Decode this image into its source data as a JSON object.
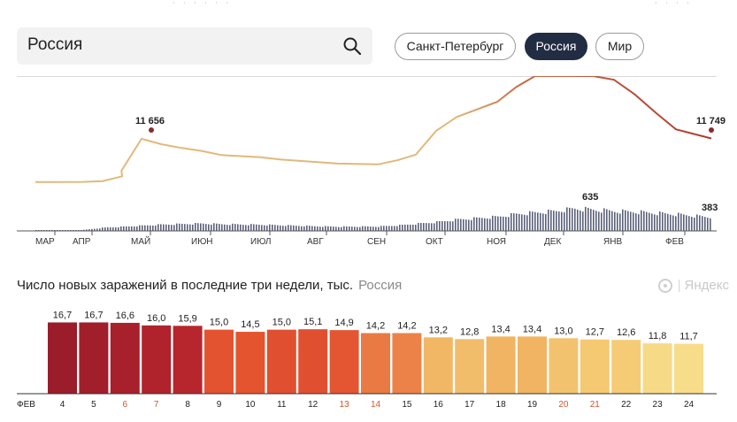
{
  "search": {
    "value": "Россия"
  },
  "region_pills": [
    {
      "label": "Санкт-Петербург",
      "active": false
    },
    {
      "label": "Россия",
      "active": true
    },
    {
      "label": "Мир",
      "active": false
    }
  ],
  "colors": {
    "cumulative_line_low": "#e0b97a",
    "cumulative_line_high": "#b03a2e",
    "daily_bars": "#5b6078",
    "marker": "#8a2a2a",
    "active_pill": "#222d44",
    "weekend_label": "#d2542c"
  },
  "chart_data": [
    {
      "type": "line",
      "description_ref": "cumulative infection curve with daily bars",
      "x_tick_labels": [
        "МАР",
        "АПР",
        "МАЙ",
        "ИЮН",
        "ИЮЛ",
        "АВГ",
        "СЕН",
        "ОКТ",
        "НОЯ",
        "ДЕК",
        "ЯНВ",
        "ФЕВ"
      ],
      "annotations": [
        {
          "label": "11 656",
          "x": "МАЙ"
        },
        {
          "label": "11 749",
          "x": "ФЕВ"
        },
        {
          "label": "635",
          "x": "ДЕК"
        },
        {
          "label": "383",
          "x": "ФЕВ"
        }
      ],
      "line_values": [
        {
          "x": "МАР",
          "y": 60
        },
        {
          "x": "МАР+",
          "y": 60
        },
        {
          "x": "АПР",
          "y": 100
        },
        {
          "x": "АПР+",
          "y": 300
        },
        {
          "x": "АПР++",
          "y": 1600
        },
        {
          "x": "МАЙ-",
          "y": 3100
        },
        {
          "x": "МАЙ",
          "y": 11656
        },
        {
          "x": "МАЙ+",
          "y": 10200
        },
        {
          "x": "ИЮН-",
          "y": 9200
        },
        {
          "x": "ИЮН",
          "y": 8400
        },
        {
          "x": "ИЮН+",
          "y": 7300
        },
        {
          "x": "ИЮЛ",
          "y": 6700
        },
        {
          "x": "ИЮЛ+",
          "y": 6100
        },
        {
          "x": "АВГ",
          "y": 5400
        },
        {
          "x": "АВГ+",
          "y": 5000
        },
        {
          "x": "СЕН",
          "y": 4800
        },
        {
          "x": "СЕН+",
          "y": 5900
        },
        {
          "x": "ОКТ-",
          "y": 7400
        },
        {
          "x": "ОКТ",
          "y": 13800
        },
        {
          "x": "ОКТ+",
          "y": 17500
        },
        {
          "x": "НОЯ",
          "y": 21600
        },
        {
          "x": "НОЯ+",
          "y": 25600
        },
        {
          "x": "ДЕК-",
          "y": 28500
        },
        {
          "x": "ДЕК",
          "y": 28500
        },
        {
          "x": "ДЕК+",
          "y": 28500
        },
        {
          "x": "ЯНВ-",
          "y": 28500
        },
        {
          "x": "ЯНВ",
          "y": 27500
        },
        {
          "x": "ЯНВ+",
          "y": 23600
        },
        {
          "x": "ФЕВ-",
          "y": 18500
        },
        {
          "x": "ФЕВ",
          "y": 14200
        },
        {
          "x": "ФЕВ+",
          "y": 11749
        }
      ],
      "bar_values": [
        {
          "x": "МАР",
          "y": 5
        },
        {
          "x": "АПР",
          "y": 30
        },
        {
          "x": "АПР+",
          "y": 90
        },
        {
          "x": "МАЙ",
          "y": 150
        },
        {
          "x": "МАЙ+",
          "y": 180
        },
        {
          "x": "ИЮН",
          "y": 210
        },
        {
          "x": "ИЮН+",
          "y": 190
        },
        {
          "x": "ИЮЛ",
          "y": 175
        },
        {
          "x": "ИЮЛ+",
          "y": 160
        },
        {
          "x": "АВГ",
          "y": 130
        },
        {
          "x": "АВГ+",
          "y": 120
        },
        {
          "x": "СЕН",
          "y": 125
        },
        {
          "x": "СЕН+",
          "y": 155
        },
        {
          "x": "ОКТ",
          "y": 250
        },
        {
          "x": "ОКТ+",
          "y": 320
        },
        {
          "x": "НОЯ",
          "y": 400
        },
        {
          "x": "НОЯ+",
          "y": 480
        },
        {
          "x": "ДЕК",
          "y": 560
        },
        {
          "x": "ДЕК+",
          "y": 635
        },
        {
          "x": "ЯНВ",
          "y": 560
        },
        {
          "x": "ЯНВ+",
          "y": 540
        },
        {
          "x": "ФЕВ",
          "y": 470
        },
        {
          "x": "ФЕВ+",
          "y": 383
        }
      ]
    },
    {
      "type": "bar",
      "title": "Число новых заражений в последние три недели, тыс.",
      "region": "Россия",
      "month_label": "ФЕВ",
      "categories": [
        "4",
        "5",
        "6",
        "7",
        "8",
        "9",
        "10",
        "11",
        "12",
        "13",
        "14",
        "15",
        "16",
        "17",
        "18",
        "19",
        "20",
        "21",
        "22",
        "23",
        "24"
      ],
      "weekend_categories": [
        "6",
        "7",
        "13",
        "14",
        "20",
        "21"
      ],
      "values": [
        16.7,
        16.7,
        16.6,
        16.0,
        15.9,
        15.0,
        14.5,
        15.0,
        15.1,
        14.9,
        14.2,
        14.2,
        13.2,
        12.8,
        13.4,
        13.4,
        13.0,
        12.7,
        12.6,
        11.8,
        11.7
      ],
      "value_labels": [
        "16,7",
        "16,7",
        "16,6",
        "16,0",
        "15,9",
        "15,0",
        "14,5",
        "15,0",
        "15,1",
        "14,9",
        "14,2",
        "14,2",
        "13,2",
        "12,8",
        "13,4",
        "13,4",
        "13,0",
        "12,7",
        "12,6",
        "11,8",
        "11,7"
      ],
      "ylim": [
        0,
        17
      ]
    }
  ],
  "watermark": {
    "label": "Яндекс"
  }
}
